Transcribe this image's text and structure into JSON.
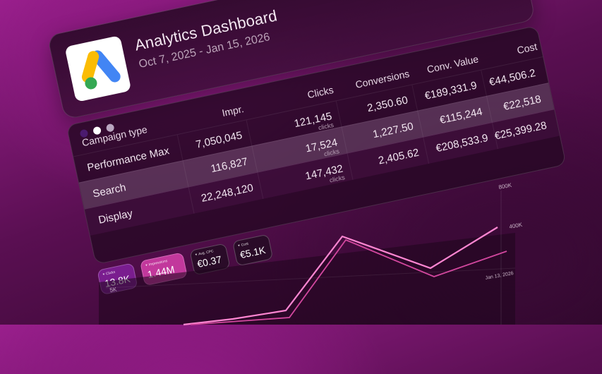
{
  "header": {
    "title": "Analytics Dashboard",
    "date_range": "Oct 7, 2025 - Jan 15, 2026"
  },
  "colors": {
    "accent": "#d23fa8",
    "kpi_clicks_bg": "#7a1d8f",
    "kpi_impr_bg": "#c2389c",
    "kpi_dark_bg": "#2a0b28",
    "line_primary": "#ff86d2",
    "line_secondary": "#d2479e",
    "logo_blue": "#4285F4",
    "logo_yellow": "#FBBC04",
    "logo_green": "#34A853",
    "dot_1": "#4b1a6e",
    "dot_2": "#ffffff",
    "dot_3": "#b9a7c0"
  },
  "table": {
    "row_label_header": "Campaign type",
    "columns": [
      "Impr.",
      "Clicks",
      "Conversions",
      "Conv. Value",
      "Cost"
    ],
    "clicks_sub": "clicks",
    "rows": [
      {
        "name": "Performance Max",
        "impr": "7,050,045",
        "clicks": "121,145",
        "conversions": "2,350.60",
        "conv_value": "€189,331.9",
        "cost": "€44,506.2"
      },
      {
        "name": "Search",
        "impr": "116,827",
        "clicks": "17,524",
        "conversions": "1,227.50",
        "conv_value": "€115,244",
        "cost": "€22,518"
      },
      {
        "name": "Display",
        "impr": "22,248,120",
        "clicks": "147,432",
        "conversions": "2,405.62",
        "conv_value": "€208,533.9",
        "cost": "€25,399.28"
      }
    ]
  },
  "kpis": [
    {
      "label": "Clicks",
      "value": "13.8K",
      "icon": "chevron-down-icon"
    },
    {
      "label": "Impressions",
      "value": "1.44M",
      "icon": "chevron-down-icon"
    },
    {
      "label": "Avg. CPC",
      "value": "€0.37",
      "icon": "chevron-down-icon"
    },
    {
      "label": "Cost",
      "value": "€5.1K",
      "icon": "chevron-down-icon"
    }
  ],
  "chart": {
    "y_right_ticks": [
      "800K",
      "400K"
    ],
    "y_left_tick": "5K",
    "x_tick": "Jan 13, 2026"
  }
}
